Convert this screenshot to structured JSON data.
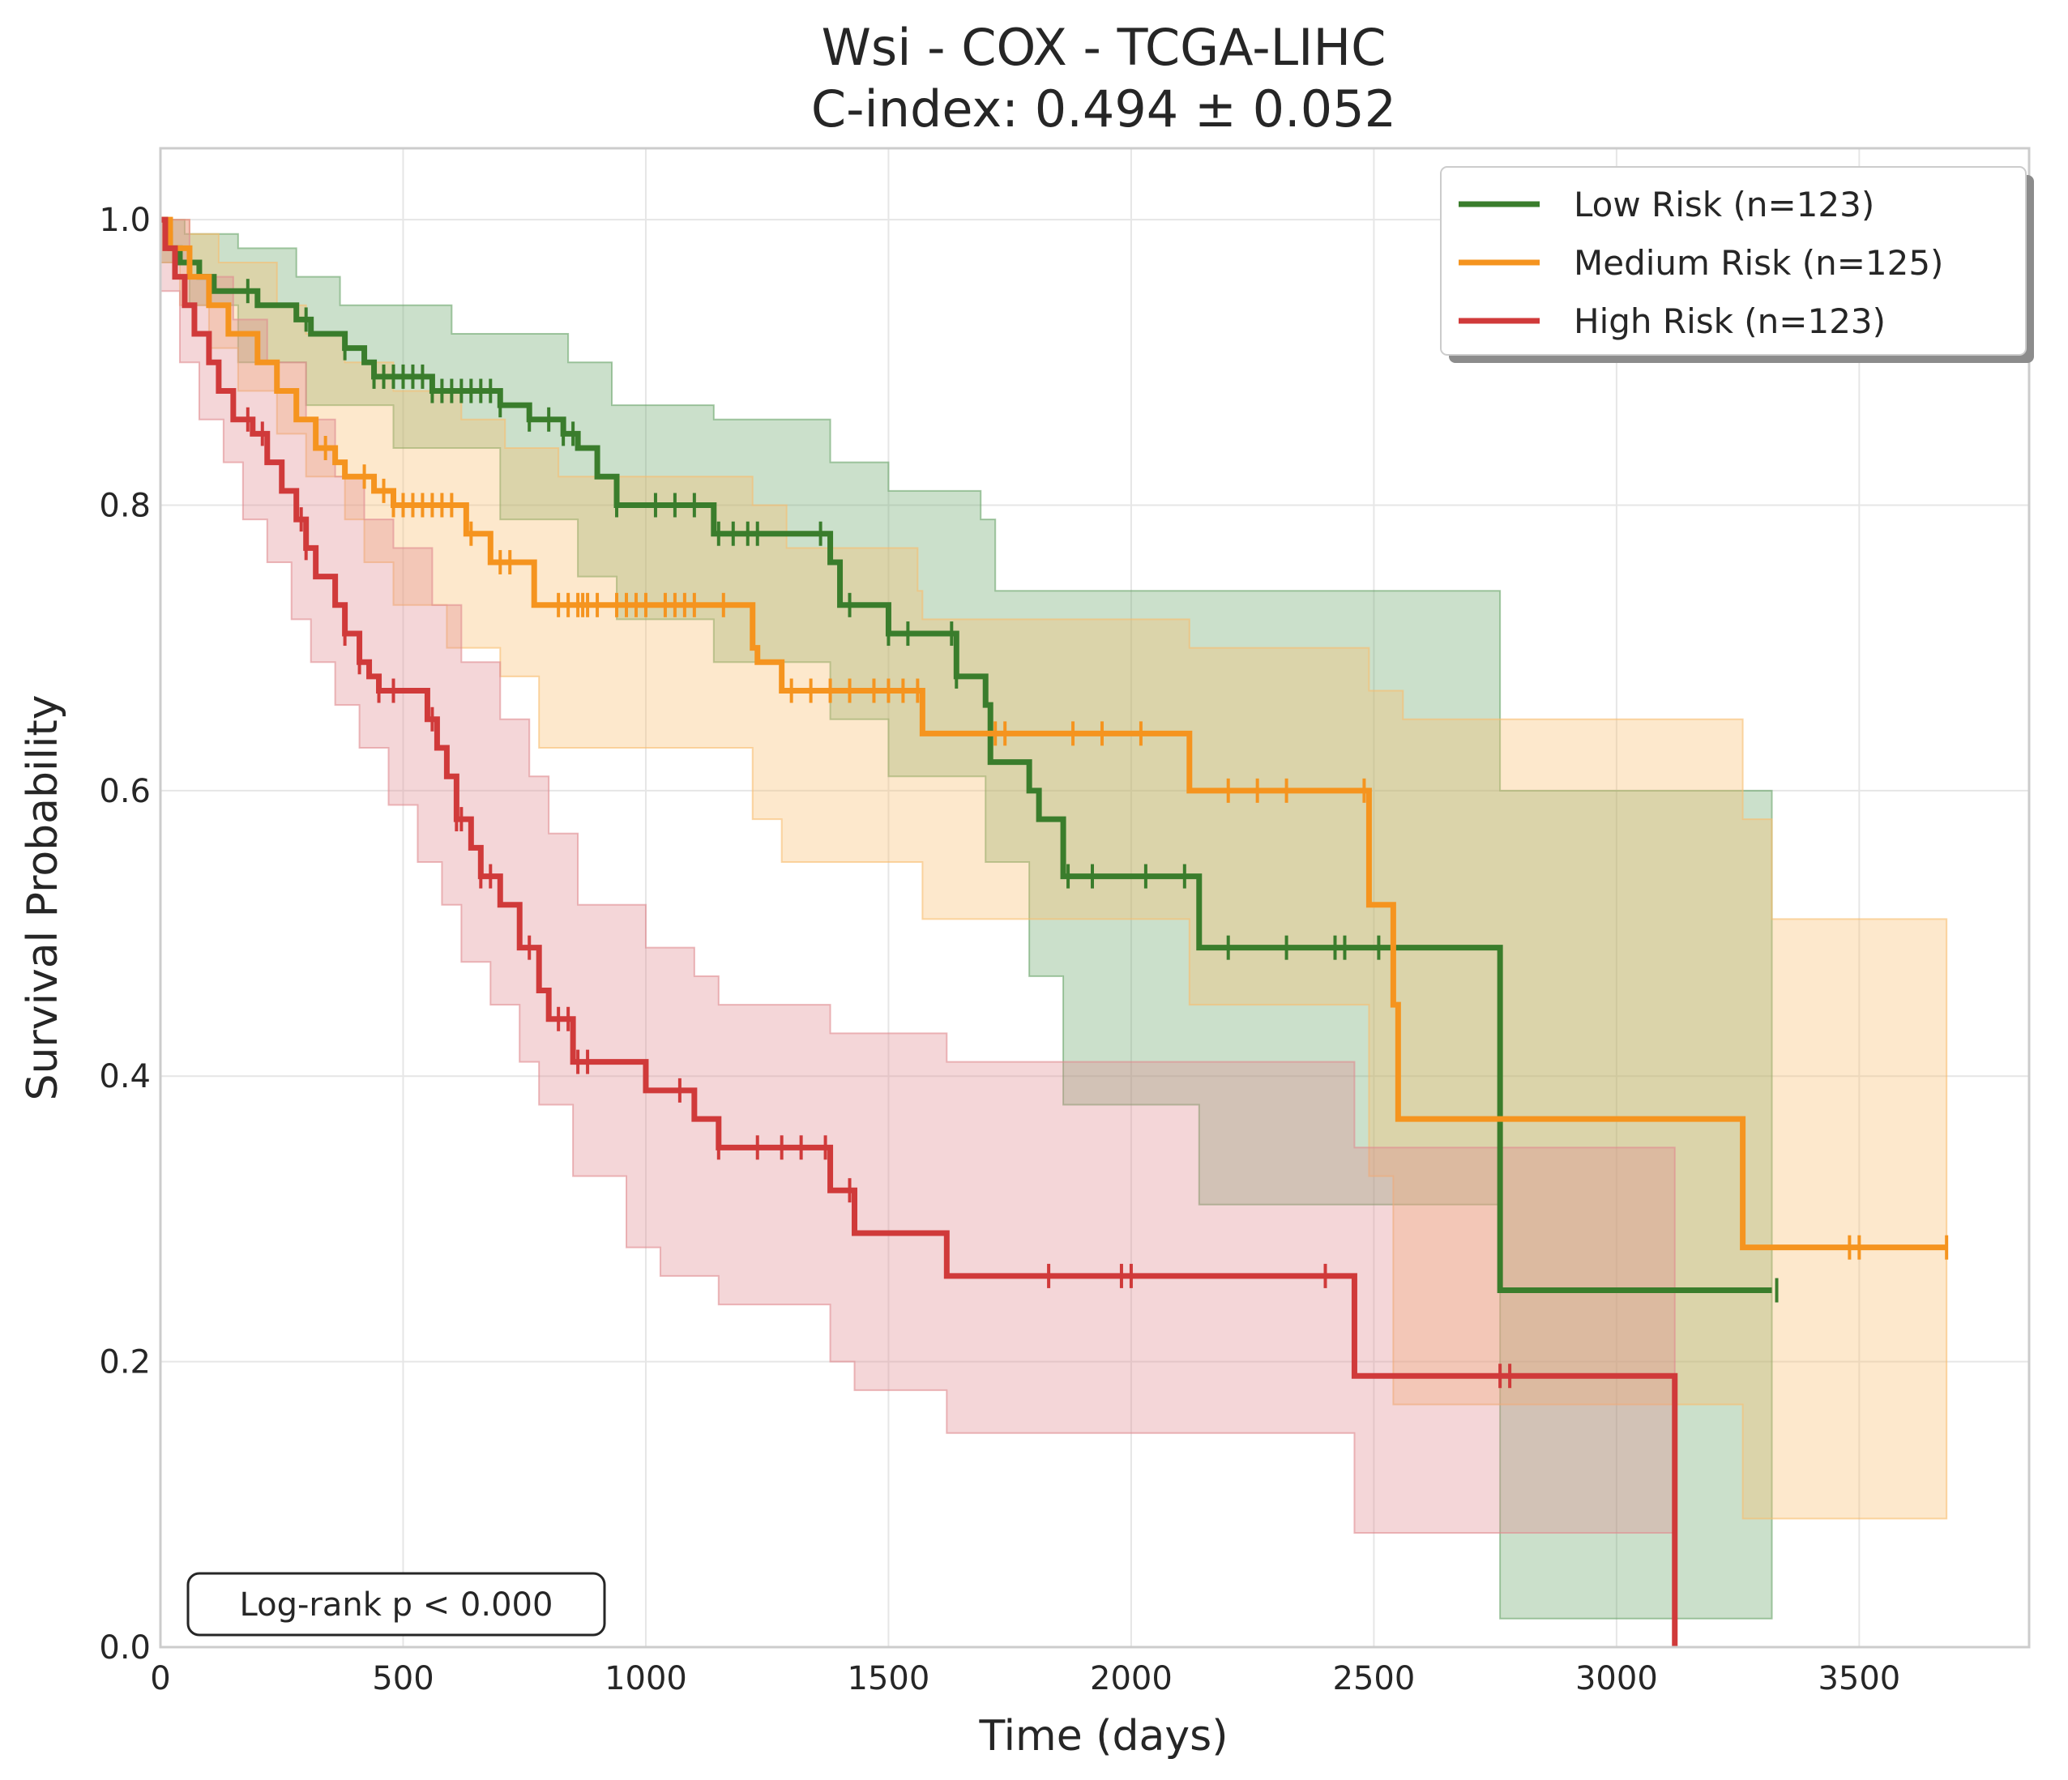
{
  "chart_data": {
    "type": "line",
    "title": "Wsi - COX - TCGA-LIHC",
    "subtitle": "C-index: 0.494 ± 0.052",
    "xlabel": "Time (days)",
    "ylabel": "Survival Probability",
    "xlim": [
      0,
      3850
    ],
    "ylim": [
      0,
      1.05
    ],
    "xticks": [
      0,
      500,
      1000,
      1500,
      2000,
      2500,
      3000,
      3500
    ],
    "yticks": [
      0.0,
      0.2,
      0.4,
      0.6,
      0.8,
      1.0
    ],
    "xtick_labels": [
      "0",
      "500",
      "1000",
      "1500",
      "2000",
      "2500",
      "3000",
      "3500"
    ],
    "ytick_labels": [
      "0.0",
      "0.2",
      "0.4",
      "0.6",
      "0.8",
      "1.0"
    ],
    "grid": true,
    "legend_position": "top-right",
    "annotation": "Log-rank p < 0.000",
    "series": [
      {
        "name": "Low Risk (n=123)",
        "color": "#3a7d2c",
        "fill_color": "#6aa56a",
        "steps": [
          [
            0,
            1.0
          ],
          [
            10,
            0.99
          ],
          [
            20,
            0.98
          ],
          [
            40,
            0.97
          ],
          [
            80,
            0.96
          ],
          [
            110,
            0.95
          ],
          [
            200,
            0.94
          ],
          [
            280,
            0.93
          ],
          [
            310,
            0.92
          ],
          [
            380,
            0.91
          ],
          [
            420,
            0.9
          ],
          [
            440,
            0.89
          ],
          [
            560,
            0.88
          ],
          [
            700,
            0.87
          ],
          [
            760,
            0.86
          ],
          [
            830,
            0.85
          ],
          [
            860,
            0.84
          ],
          [
            900,
            0.82
          ],
          [
            940,
            0.8
          ],
          [
            1140,
            0.78
          ],
          [
            1380,
            0.76
          ],
          [
            1400,
            0.73
          ],
          [
            1500,
            0.71
          ],
          [
            1640,
            0.68
          ],
          [
            1700,
            0.66
          ],
          [
            1710,
            0.62
          ],
          [
            1790,
            0.6
          ],
          [
            1810,
            0.58
          ],
          [
            1860,
            0.54
          ],
          [
            2140,
            0.49
          ],
          [
            2760,
            0.25
          ],
          [
            3320,
            0.25
          ]
        ],
        "ci_upper": [
          [
            0,
            1.0
          ],
          [
            50,
            0.99
          ],
          [
            160,
            0.98
          ],
          [
            280,
            0.96
          ],
          [
            370,
            0.94
          ],
          [
            600,
            0.92
          ],
          [
            840,
            0.9
          ],
          [
            930,
            0.87
          ],
          [
            1140,
            0.86
          ],
          [
            1380,
            0.83
          ],
          [
            1500,
            0.81
          ],
          [
            1690,
            0.79
          ],
          [
            1720,
            0.74
          ],
          [
            2760,
            0.6
          ],
          [
            3320,
            0.6
          ]
        ],
        "ci_lower": [
          [
            0,
            0.97
          ],
          [
            60,
            0.94
          ],
          [
            160,
            0.9
          ],
          [
            300,
            0.87
          ],
          [
            480,
            0.84
          ],
          [
            700,
            0.79
          ],
          [
            860,
            0.75
          ],
          [
            940,
            0.72
          ],
          [
            1140,
            0.69
          ],
          [
            1380,
            0.65
          ],
          [
            1500,
            0.61
          ],
          [
            1700,
            0.55
          ],
          [
            1790,
            0.47
          ],
          [
            1860,
            0.38
          ],
          [
            2140,
            0.31
          ],
          [
            2760,
            0.02
          ],
          [
            3320,
            0.02
          ]
        ],
        "censored": [
          180,
          300,
          380,
          440,
          460,
          480,
          500,
          520,
          540,
          560,
          580,
          600,
          620,
          640,
          660,
          680,
          700,
          760,
          800,
          830,
          850,
          940,
          1020,
          1060,
          1100,
          1150,
          1180,
          1210,
          1230,
          1360,
          1420,
          1500,
          1540,
          1630,
          1640,
          1870,
          1920,
          2030,
          2110,
          2200,
          2320,
          2420,
          2440,
          2510,
          3330
        ]
      },
      {
        "name": "Medium Risk (n=125)",
        "color": "#f5941f",
        "fill_color": "#f9bc6e",
        "steps": [
          [
            0,
            1.0
          ],
          [
            20,
            0.98
          ],
          [
            60,
            0.96
          ],
          [
            100,
            0.94
          ],
          [
            140,
            0.92
          ],
          [
            200,
            0.9
          ],
          [
            240,
            0.88
          ],
          [
            280,
            0.86
          ],
          [
            320,
            0.84
          ],
          [
            360,
            0.83
          ],
          [
            380,
            0.82
          ],
          [
            440,
            0.81
          ],
          [
            480,
            0.8
          ],
          [
            630,
            0.78
          ],
          [
            680,
            0.76
          ],
          [
            770,
            0.73
          ],
          [
            1220,
            0.7
          ],
          [
            1230,
            0.69
          ],
          [
            1280,
            0.67
          ],
          [
            1570,
            0.64
          ],
          [
            2120,
            0.6
          ],
          [
            2490,
            0.52
          ],
          [
            2540,
            0.45
          ],
          [
            2550,
            0.37
          ],
          [
            3260,
            0.28
          ],
          [
            3680,
            0.28
          ]
        ],
        "ci_upper": [
          [
            0,
            1.0
          ],
          [
            60,
            0.99
          ],
          [
            120,
            0.97
          ],
          [
            240,
            0.94
          ],
          [
            300,
            0.92
          ],
          [
            380,
            0.9
          ],
          [
            480,
            0.88
          ],
          [
            620,
            0.86
          ],
          [
            710,
            0.84
          ],
          [
            820,
            0.82
          ],
          [
            1220,
            0.8
          ],
          [
            1290,
            0.77
          ],
          [
            1560,
            0.74
          ],
          [
            1570,
            0.72
          ],
          [
            2120,
            0.7
          ],
          [
            2490,
            0.67
          ],
          [
            2560,
            0.65
          ],
          [
            3260,
            0.58
          ],
          [
            3320,
            0.51
          ],
          [
            3680,
            0.51
          ]
        ],
        "ci_lower": [
          [
            0,
            0.97
          ],
          [
            40,
            0.94
          ],
          [
            100,
            0.91
          ],
          [
            160,
            0.88
          ],
          [
            240,
            0.85
          ],
          [
            300,
            0.82
          ],
          [
            380,
            0.79
          ],
          [
            420,
            0.76
          ],
          [
            480,
            0.73
          ],
          [
            590,
            0.7
          ],
          [
            700,
            0.68
          ],
          [
            780,
            0.63
          ],
          [
            1220,
            0.58
          ],
          [
            1280,
            0.55
          ],
          [
            1570,
            0.51
          ],
          [
            2120,
            0.45
          ],
          [
            2490,
            0.33
          ],
          [
            2540,
            0.17
          ],
          [
            3260,
            0.09
          ],
          [
            3680,
            0.09
          ]
        ],
        "censored": [
          340,
          420,
          460,
          480,
          500,
          520,
          540,
          560,
          580,
          600,
          640,
          700,
          720,
          820,
          840,
          860,
          870,
          880,
          900,
          940,
          960,
          980,
          1000,
          1040,
          1060,
          1080,
          1100,
          1160,
          1300,
          1340,
          1380,
          1420,
          1470,
          1500,
          1530,
          1560,
          1720,
          1740,
          1880,
          1940,
          2020,
          2200,
          2260,
          2320,
          2480,
          3480,
          3500,
          3680
        ]
      },
      {
        "name": "High Risk (n=123)",
        "color": "#d03a3a",
        "fill_color": "#e08a90",
        "steps": [
          [
            0,
            1.0
          ],
          [
            10,
            0.98
          ],
          [
            30,
            0.96
          ],
          [
            50,
            0.94
          ],
          [
            70,
            0.92
          ],
          [
            100,
            0.9
          ],
          [
            120,
            0.88
          ],
          [
            150,
            0.86
          ],
          [
            190,
            0.85
          ],
          [
            220,
            0.83
          ],
          [
            250,
            0.81
          ],
          [
            280,
            0.79
          ],
          [
            300,
            0.77
          ],
          [
            320,
            0.75
          ],
          [
            360,
            0.73
          ],
          [
            380,
            0.71
          ],
          [
            410,
            0.69
          ],
          [
            430,
            0.68
          ],
          [
            450,
            0.67
          ],
          [
            550,
            0.65
          ],
          [
            570,
            0.63
          ],
          [
            590,
            0.61
          ],
          [
            610,
            0.58
          ],
          [
            640,
            0.56
          ],
          [
            660,
            0.54
          ],
          [
            700,
            0.52
          ],
          [
            740,
            0.49
          ],
          [
            780,
            0.46
          ],
          [
            800,
            0.44
          ],
          [
            850,
            0.41
          ],
          [
            1000,
            0.39
          ],
          [
            1100,
            0.37
          ],
          [
            1150,
            0.35
          ],
          [
            1380,
            0.32
          ],
          [
            1430,
            0.29
          ],
          [
            1620,
            0.26
          ],
          [
            2460,
            0.19
          ],
          [
            3120,
            0.0
          ]
        ],
        "ci_upper": [
          [
            0,
            1.0
          ],
          [
            60,
            0.96
          ],
          [
            150,
            0.93
          ],
          [
            220,
            0.9
          ],
          [
            300,
            0.86
          ],
          [
            360,
            0.82
          ],
          [
            420,
            0.79
          ],
          [
            480,
            0.77
          ],
          [
            560,
            0.73
          ],
          [
            620,
            0.69
          ],
          [
            700,
            0.65
          ],
          [
            760,
            0.61
          ],
          [
            800,
            0.57
          ],
          [
            860,
            0.52
          ],
          [
            1000,
            0.49
          ],
          [
            1100,
            0.47
          ],
          [
            1150,
            0.45
          ],
          [
            1380,
            0.43
          ],
          [
            1620,
            0.41
          ],
          [
            2460,
            0.35
          ],
          [
            3120,
            0.35
          ]
        ],
        "ci_lower": [
          [
            0,
            0.95
          ],
          [
            40,
            0.9
          ],
          [
            80,
            0.86
          ],
          [
            130,
            0.83
          ],
          [
            170,
            0.79
          ],
          [
            220,
            0.76
          ],
          [
            270,
            0.72
          ],
          [
            310,
            0.69
          ],
          [
            360,
            0.66
          ],
          [
            410,
            0.63
          ],
          [
            470,
            0.59
          ],
          [
            530,
            0.55
          ],
          [
            580,
            0.52
          ],
          [
            620,
            0.48
          ],
          [
            680,
            0.45
          ],
          [
            740,
            0.41
          ],
          [
            780,
            0.38
          ],
          [
            850,
            0.33
          ],
          [
            960,
            0.28
          ],
          [
            1030,
            0.26
          ],
          [
            1150,
            0.24
          ],
          [
            1380,
            0.2
          ],
          [
            1430,
            0.18
          ],
          [
            1620,
            0.15
          ],
          [
            2460,
            0.08
          ],
          [
            3120,
            0.0
          ]
        ],
        "censored": [
          180,
          210,
          290,
          300,
          380,
          410,
          450,
          480,
          560,
          610,
          620,
          660,
          680,
          760,
          820,
          840,
          860,
          880,
          1070,
          1150,
          1230,
          1280,
          1320,
          1370,
          1420,
          1830,
          1980,
          2000,
          2400,
          2760,
          2780
        ]
      }
    ]
  }
}
